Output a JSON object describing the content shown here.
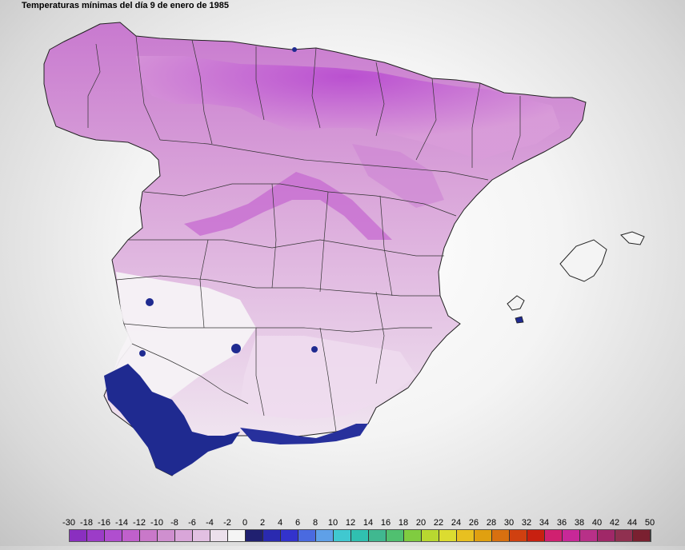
{
  "title": "Temperaturas mínimas del día 9 de enero de 1985",
  "legend": {
    "labels": [
      "-30",
      "-18",
      "-16",
      "-14",
      "-12",
      "-10",
      "-8",
      "-6",
      "-4",
      "-2",
      "0",
      "2",
      "4",
      "6",
      "8",
      "10",
      "12",
      "14",
      "16",
      "18",
      "20",
      "22",
      "24",
      "26",
      "28",
      "30",
      "32",
      "34",
      "36",
      "38",
      "40",
      "42",
      "44",
      "50"
    ],
    "colors": [
      "#8a2fc0",
      "#9c3cc8",
      "#b04ecf",
      "#c060cc",
      "#c978c9",
      "#cf8fcf",
      "#d9a6d9",
      "#e2c0e2",
      "#ece0ec",
      "#f5f5f5",
      "#202070",
      "#2a2ab0",
      "#3333cc",
      "#4a6ae0",
      "#5fa0e8",
      "#40c8d0",
      "#30c0b0",
      "#40b890",
      "#50c070",
      "#80cc40",
      "#b8d830",
      "#dcdc30",
      "#e8c020",
      "#e0a010",
      "#d87010",
      "#d04010",
      "#c82010",
      "#d02070",
      "#c82898",
      "#b83088",
      "#a02868",
      "#903050",
      "#7a2030"
    ]
  },
  "map": {
    "region": "Península Ibérica y Baleares",
    "dominant_colors": {
      "north_cold": "#b040c8",
      "interior": "#dca8dc",
      "south_mild": "#f2eef2",
      "coast_warm": "#1e2a8c"
    }
  }
}
